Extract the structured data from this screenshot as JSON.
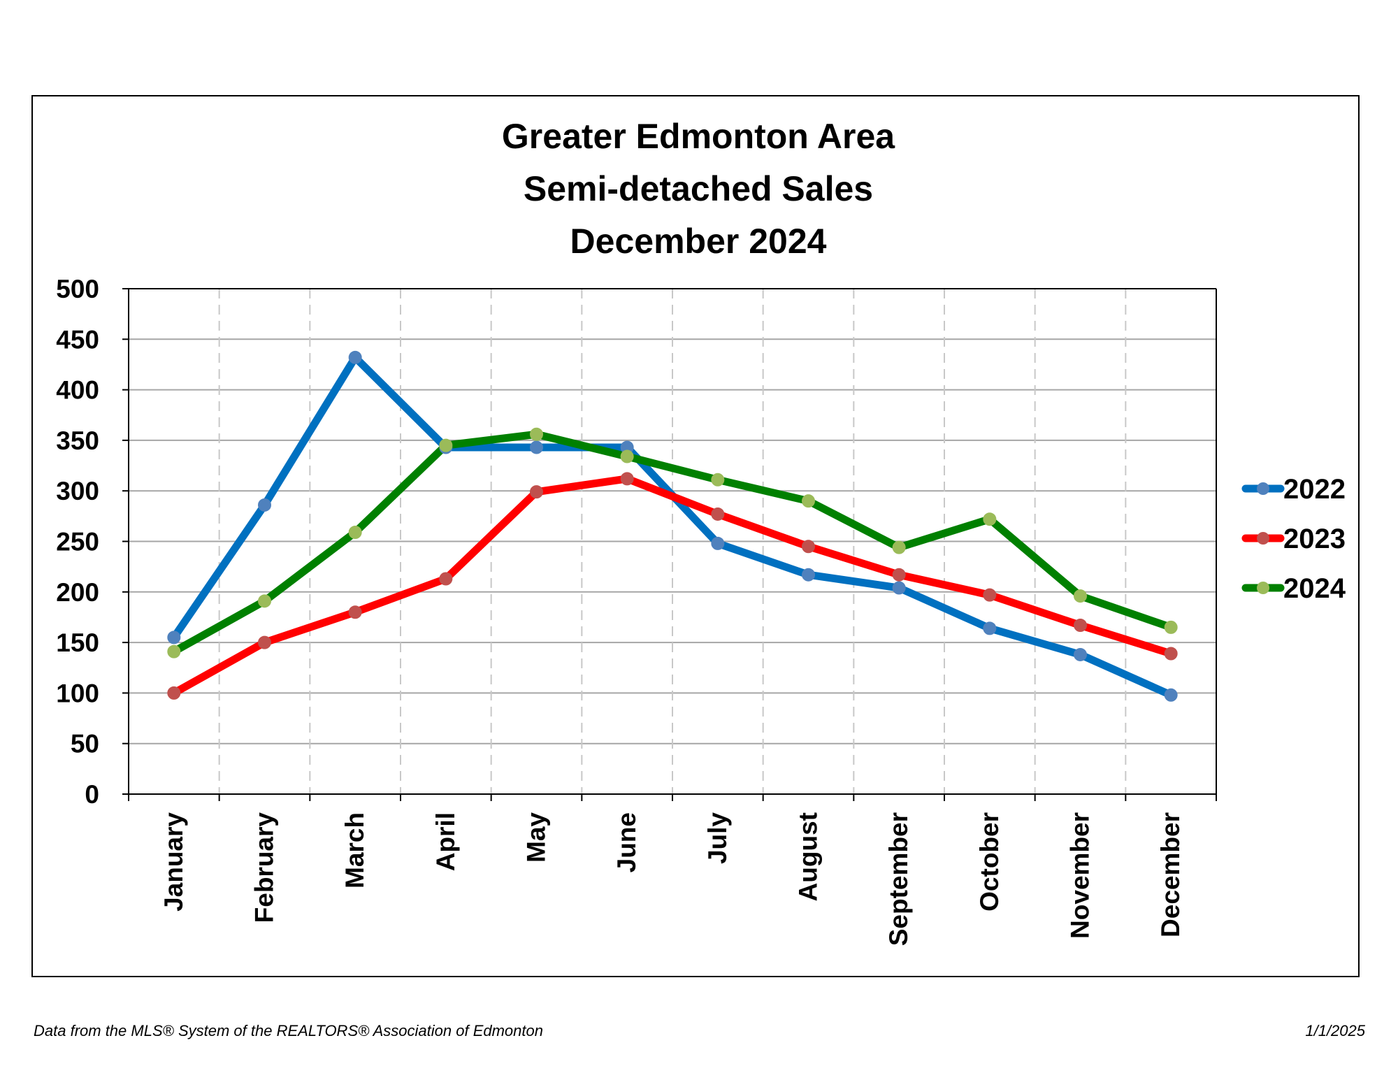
{
  "footer": {
    "source": "Data from the MLS® System of the REALTORS® Association of Edmonton",
    "date": "1/1/2025"
  },
  "chart_data": {
    "type": "line",
    "title": [
      "Greater Edmonton Area",
      "Semi-detached Sales",
      "December 2024"
    ],
    "xlabel": "",
    "ylabel": "",
    "ylim": [
      0,
      500
    ],
    "yticks": [
      0,
      50,
      100,
      150,
      200,
      250,
      300,
      350,
      400,
      450,
      500
    ],
    "grid": true,
    "legend": "right",
    "categories": [
      "January",
      "February",
      "March",
      "April",
      "May",
      "June",
      "July",
      "August",
      "September",
      "October",
      "November",
      "December"
    ],
    "series": [
      {
        "name": "2022",
        "color": "#0070c0",
        "marker": "#4f81bd",
        "values": [
          155,
          286,
          432,
          343,
          343,
          343,
          248,
          217,
          204,
          164,
          138,
          98
        ]
      },
      {
        "name": "2023",
        "color": "#ff0000",
        "marker": "#c0504d",
        "values": [
          100,
          150,
          180,
          213,
          299,
          312,
          277,
          245,
          217,
          197,
          167,
          139
        ]
      },
      {
        "name": "2024",
        "color": "#008000",
        "marker": "#9bbb59",
        "values": [
          141,
          191,
          259,
          345,
          356,
          334,
          311,
          290,
          244,
          272,
          196,
          165
        ]
      }
    ]
  }
}
